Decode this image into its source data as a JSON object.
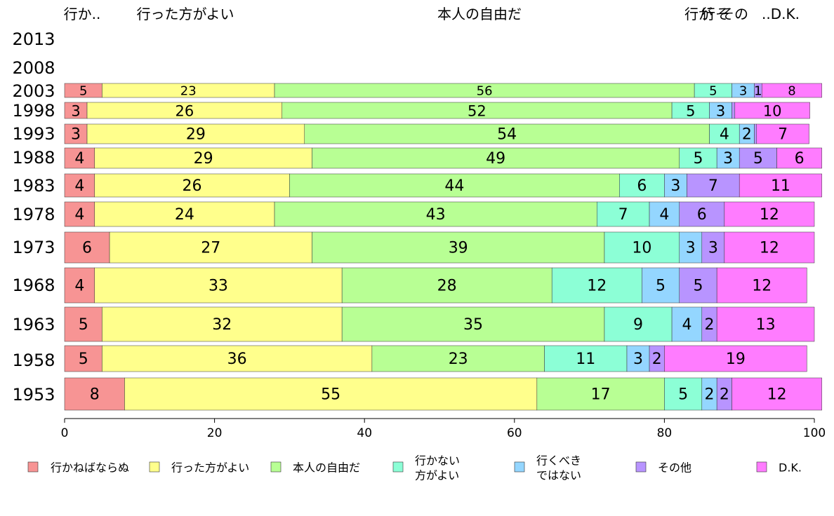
{
  "chart_data": {
    "type": "bar",
    "orientation": "horizontal",
    "stacked": true,
    "xlim": [
      0,
      100
    ],
    "xticks": [
      "0",
      "20",
      "40",
      "60",
      "80",
      "100"
    ],
    "categories": [
      "2013",
      "2008",
      "2003",
      "1998",
      "1993",
      "1988",
      "1983",
      "1978",
      "1973",
      "1968",
      "1963",
      "1958",
      "1953"
    ],
    "column_headers": [
      "行か..",
      "行った方がよい",
      "本人の自由だ",
      "行が",
      "行そ",
      "その",
      "..D.K."
    ],
    "legend_position": "bottom",
    "series": [
      {
        "name": "行かねばならぬ",
        "color": "#f79494",
        "values": [
          null,
          null,
          5,
          3,
          3,
          4,
          4,
          4,
          6,
          4,
          5,
          5,
          8
        ]
      },
      {
        "name": "行った方がよい",
        "color": "#ffff8c",
        "values": [
          null,
          null,
          23,
          26,
          29,
          29,
          26,
          24,
          27,
          33,
          32,
          36,
          55
        ]
      },
      {
        "name": "本人の自由だ",
        "color": "#b8ff94",
        "values": [
          null,
          null,
          56,
          52,
          54,
          49,
          44,
          43,
          39,
          28,
          35,
          23,
          17
        ]
      },
      {
        "name": "行かない 方がよい",
        "lines": [
          "行かない",
          "方がよい"
        ],
        "color": "#8cffd6",
        "values": [
          null,
          null,
          5,
          5,
          4,
          5,
          6,
          7,
          10,
          12,
          9,
          11,
          5
        ]
      },
      {
        "name": "行くべき ではない",
        "lines": [
          "行くべき",
          "ではない"
        ],
        "color": "#94d6ff",
        "values": [
          null,
          null,
          3,
          3,
          2,
          3,
          3,
          4,
          3,
          5,
          4,
          3,
          2
        ]
      },
      {
        "name": "その他",
        "color": "#b894ff",
        "values": [
          null,
          null,
          1,
          0.4,
          0.3,
          5,
          7,
          6,
          3,
          5,
          2,
          2,
          2
        ]
      },
      {
        "name": "D.K.",
        "color": "#ff7cff",
        "values": [
          null,
          null,
          8,
          10,
          7,
          6,
          11,
          12,
          12,
          12,
          13,
          19,
          12
        ]
      }
    ],
    "segment_labels": [
      [],
      [],
      [
        "5",
        "23",
        "56",
        "5",
        "3",
        "1",
        "8"
      ],
      [
        "3",
        "26",
        "52",
        "5",
        "3",
        "",
        "10"
      ],
      [
        "3",
        "29",
        "54",
        "4",
        "2",
        "",
        "7"
      ],
      [
        "4",
        "29",
        "49",
        "5",
        "3",
        "5",
        "6"
      ],
      [
        "4",
        "26",
        "44",
        "6",
        "3",
        "7",
        "11"
      ],
      [
        "4",
        "24",
        "43",
        "7",
        "4",
        "6",
        "12"
      ],
      [
        "6",
        "27",
        "39",
        "10",
        "3",
        "3",
        "12"
      ],
      [
        "4",
        "33",
        "28",
        "12",
        "5",
        "5",
        "12"
      ],
      [
        "5",
        "32",
        "35",
        "9",
        "4",
        "2",
        "13"
      ],
      [
        "5",
        "36",
        "23",
        "11",
        "3",
        "2",
        "19"
      ],
      [
        "8",
        "55",
        "17",
        "5",
        "2",
        "2",
        "12"
      ]
    ]
  }
}
